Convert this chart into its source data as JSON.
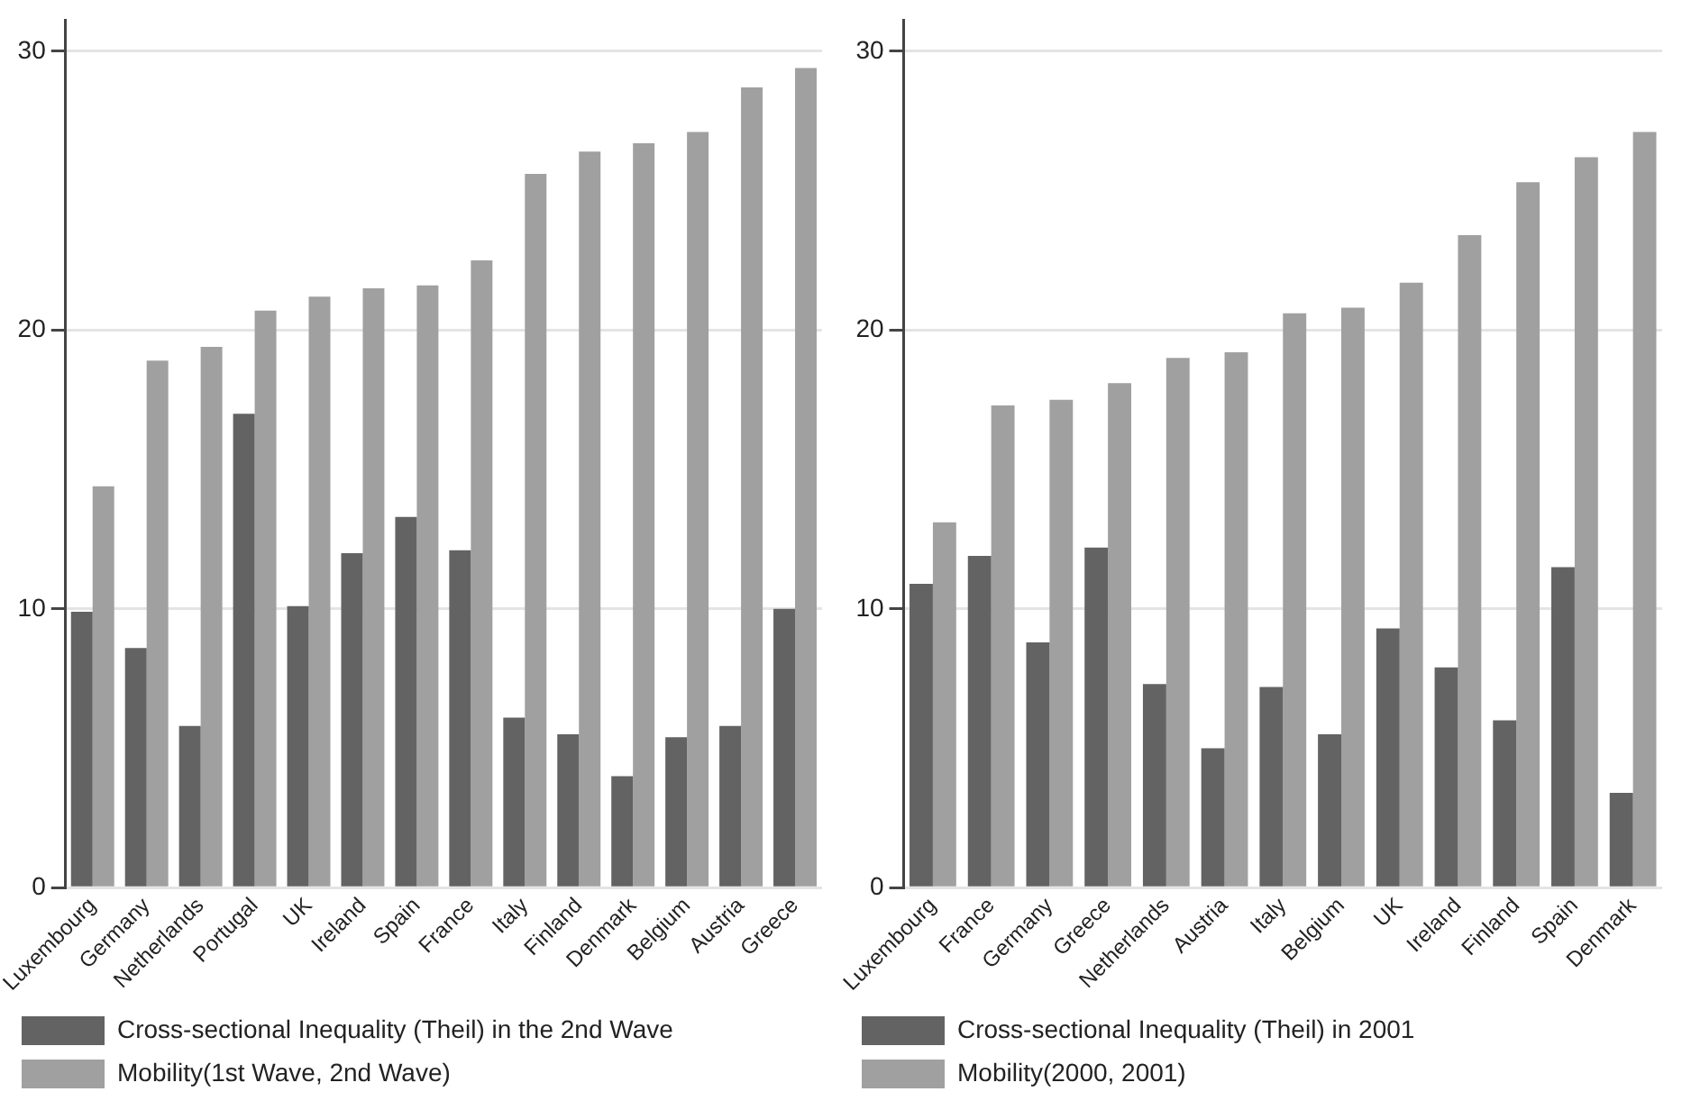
{
  "chart_data": [
    {
      "type": "bar",
      "categories": [
        "Luxembourg",
        "Germany",
        "Netherlands",
        "Portugal",
        "UK",
        "Ireland",
        "Spain",
        "France",
        "Italy",
        "Finland",
        "Denmark",
        "Belgium",
        "Austria",
        "Greece"
      ],
      "series": [
        {
          "name": "Cross-sectional Inequality (Theil) in the 2nd Wave",
          "color": "#636363",
          "values": [
            9.9,
            8.6,
            5.8,
            17.0,
            10.1,
            12.0,
            13.3,
            12.1,
            6.1,
            5.5,
            4.0,
            5.4,
            5.8,
            10.0
          ]
        },
        {
          "name": "Mobility(1st Wave, 2nd Wave)",
          "color": "#a0a0a0",
          "values": [
            14.4,
            18.9,
            19.4,
            20.7,
            21.2,
            21.5,
            21.6,
            22.5,
            25.6,
            26.4,
            26.7,
            27.1,
            28.7,
            29.4
          ]
        }
      ],
      "ylim": [
        0,
        31.1
      ],
      "yticks": [
        0,
        10,
        20,
        30
      ],
      "grid": "y",
      "legend": "bottom"
    },
    {
      "type": "bar",
      "categories": [
        "Luxembourg",
        "France",
        "Germany",
        "Greece",
        "Netherlands",
        "Austria",
        "Italy",
        "Belgium",
        "UK",
        "Ireland",
        "Finland",
        "Spain",
        "Denmark"
      ],
      "series": [
        {
          "name": "Cross-sectional Inequality (Theil) in 2001",
          "color": "#636363",
          "values": [
            10.9,
            11.9,
            8.8,
            12.2,
            7.3,
            5.0,
            7.2,
            5.5,
            9.3,
            7.9,
            6.0,
            11.5,
            3.4
          ]
        },
        {
          "name": "Mobility(2000, 2001)",
          "color": "#a0a0a0",
          "values": [
            13.1,
            17.3,
            17.5,
            18.1,
            19.0,
            19.2,
            20.6,
            20.8,
            21.7,
            23.4,
            25.3,
            26.2,
            27.1
          ]
        }
      ],
      "ylim": [
        0,
        31.1
      ],
      "yticks": [
        0,
        10,
        20,
        30
      ],
      "grid": "y",
      "legend": "bottom"
    }
  ]
}
